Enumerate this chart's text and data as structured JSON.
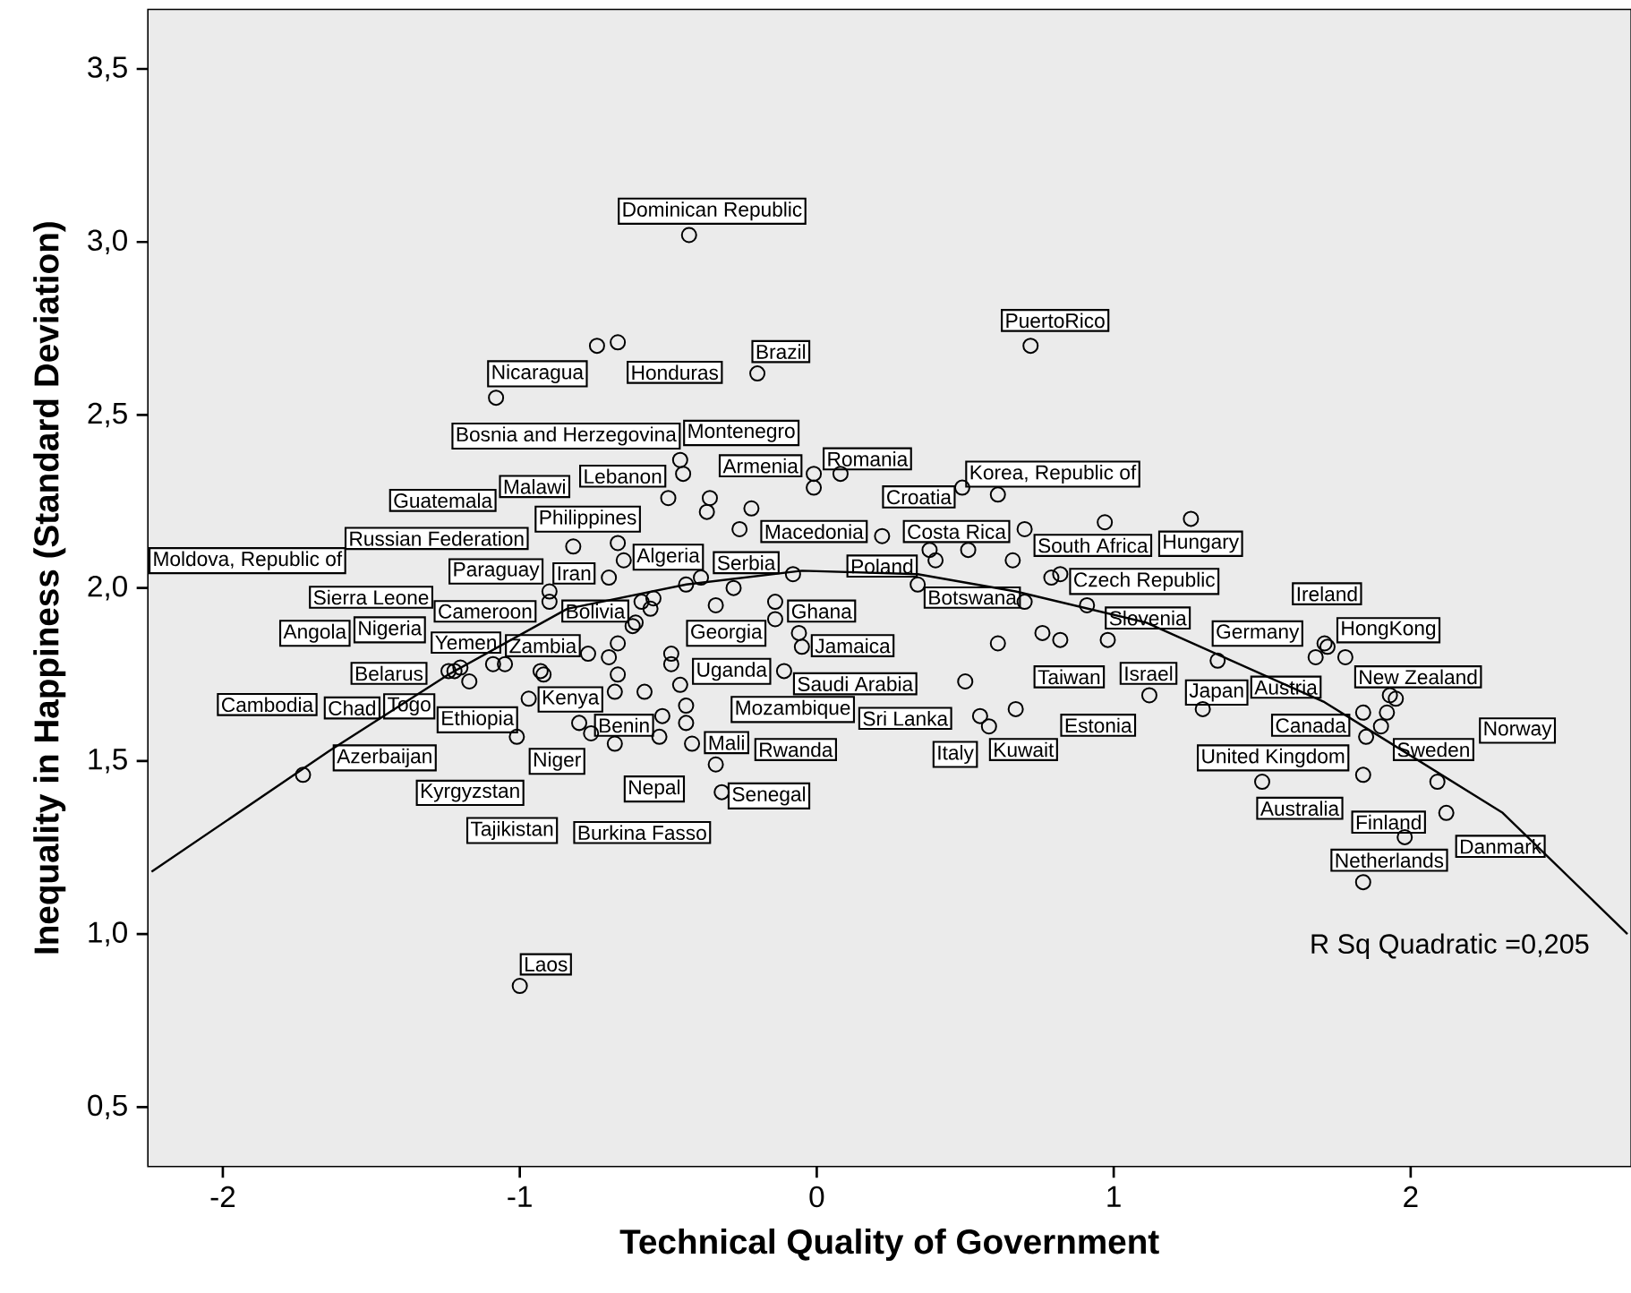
{
  "chart_data": {
    "type": "scatter",
    "xlabel": "Technical Quality of Government",
    "ylabel": "Inequality in Happiness (Standard Deviation)",
    "xlim": [
      -2.25,
      2.74
    ],
    "ylim": [
      0.33,
      3.67
    ],
    "xticks": [
      -2,
      -1,
      0,
      1,
      2
    ],
    "yticks": [
      {
        "value": 0.5,
        "label": "0,5"
      },
      {
        "value": 1.0,
        "label": "1,0"
      },
      {
        "value": 1.5,
        "label": "1,5"
      },
      {
        "value": 2.0,
        "label": "2,0"
      },
      {
        "value": 2.5,
        "label": "2,5"
      },
      {
        "value": 3.0,
        "label": "3,0"
      },
      {
        "value": 3.5,
        "label": "3,5"
      }
    ],
    "marker": "circle",
    "series": [
      {
        "color": "#000000",
        "x": [
          -0.43,
          -0.74,
          -0.67,
          -1.08,
          -0.46,
          -0.45,
          -0.5,
          -0.36,
          -0.37,
          -0.82,
          -0.67,
          -0.65,
          -0.7,
          -0.39,
          -0.44,
          -0.9,
          -0.9,
          -0.59,
          -0.55,
          -0.56,
          -0.34,
          -0.61,
          -0.67,
          -0.2,
          0.72,
          -0.01,
          0.08,
          -0.01,
          0.61,
          0.49,
          -0.22,
          -0.26,
          0.22,
          0.7,
          0.97,
          1.26,
          0.38,
          0.4,
          0.51,
          0.66,
          0.79,
          0.82,
          -0.08,
          0.34,
          0.7,
          0.91,
          -0.28,
          -0.14,
          -0.14,
          -0.06,
          0.76,
          0.82,
          0.98,
          0.61,
          1.35,
          1.12,
          1.3,
          1.71,
          1.72,
          1.68,
          1.78,
          1.93,
          1.95,
          1.84,
          1.92,
          -0.62,
          -0.77,
          -0.7,
          -0.67,
          -1.24,
          -1.22,
          -1.2,
          -1.09,
          -1.05,
          -0.93,
          -0.92,
          -1.17,
          -0.97,
          -0.68,
          -0.58,
          -0.49,
          -0.49,
          -0.46,
          -0.44,
          -0.44,
          -0.52,
          -0.8,
          -0.76,
          -0.68,
          -0.53,
          -0.42,
          -1.01,
          -1.73,
          -0.34,
          -0.32,
          -1.0,
          -0.05,
          -0.11,
          0.5,
          0.67,
          0.55,
          0.58,
          1.9,
          1.85,
          1.84,
          1.5,
          2.09,
          2.12,
          1.98,
          1.84
        ],
        "values": [
          3.02,
          2.7,
          2.71,
          2.55,
          2.37,
          2.33,
          2.26,
          2.26,
          2.22,
          2.12,
          2.13,
          2.08,
          2.03,
          2.03,
          2.01,
          1.99,
          1.96,
          1.96,
          1.97,
          1.94,
          1.95,
          1.9,
          1.84,
          2.62,
          2.7,
          2.33,
          2.33,
          2.29,
          2.27,
          2.29,
          2.23,
          2.17,
          2.15,
          2.17,
          2.19,
          2.2,
          2.11,
          2.08,
          2.11,
          2.08,
          2.03,
          2.04,
          2.04,
          2.01,
          1.96,
          1.95,
          2.0,
          1.96,
          1.91,
          1.87,
          1.87,
          1.85,
          1.85,
          1.84,
          1.79,
          1.69,
          1.65,
          1.84,
          1.83,
          1.8,
          1.8,
          1.69,
          1.68,
          1.64,
          1.64,
          1.89,
          1.81,
          1.8,
          1.75,
          1.76,
          1.76,
          1.77,
          1.78,
          1.78,
          1.76,
          1.75,
          1.73,
          1.68,
          1.7,
          1.7,
          1.81,
          1.78,
          1.72,
          1.66,
          1.61,
          1.63,
          1.61,
          1.58,
          1.55,
          1.57,
          1.55,
          1.57,
          1.46,
          1.49,
          1.41,
          0.85,
          1.83,
          1.76,
          1.73,
          1.65,
          1.63,
          1.6,
          1.6,
          1.57,
          1.46,
          1.44,
          1.44,
          1.35,
          1.28,
          1.15
        ]
      },
      {
        "type": "line",
        "color": "#000000",
        "marker": "none",
        "x": [
          -2.24,
          -1.64,
          -1.24,
          -0.84,
          -0.44,
          -0.05,
          0.34,
          0.67,
          1.11,
          1.71,
          2.31,
          2.73
        ],
        "values": [
          1.18,
          1.53,
          1.75,
          1.94,
          2.01,
          2.05,
          2.04,
          1.99,
          1.9,
          1.67,
          1.35,
          1.0
        ]
      }
    ],
    "annotations": [
      "Dominican Republic",
      "Nicaragua",
      "Honduras",
      "Bosnia and Herzegovina",
      "Montenegro",
      "Malawi",
      "Lebanon",
      "Guatemala",
      "Philippines",
      "Russian Federation",
      "Moldova, Republic of",
      "Algeria",
      "Iran",
      "Paraguay",
      "Sierra Leone",
      "Cameroon",
      "Bolivia",
      "Angola",
      "Nigeria",
      "Yemen",
      "Zambia",
      "Belarus",
      "Cambodia",
      "Chad",
      "Togo",
      "Ethiopia",
      "Kenya",
      "Benin",
      "Azerbaijan",
      "Niger",
      "Kyrgyzstan",
      "Nepal",
      "Tajikistan",
      "Burkina Fasso",
      "Laos",
      "PuertoRico",
      "Brazil",
      "Armenia",
      "Romania",
      "Croatia",
      "Korea, Republic of",
      "Macedonia",
      "Costa Rica",
      "South Africa",
      "Hungary",
      "Serbia",
      "Poland",
      "Czech Republic",
      "Botswana",
      "Slovenia",
      "Ghana",
      "Georgia",
      "Jamaica",
      "Uganda",
      "Saudi Arabia",
      "Mozambique",
      "Sri Lanka",
      "Mali",
      "Rwanda",
      "Italy",
      "Kuwait",
      "Senegal",
      "Taiwan",
      "Israel",
      "Estonia",
      "Ireland",
      "HongKong",
      "Germany",
      "Japan",
      "Austria",
      "New Zealand",
      "Canada",
      "Norway",
      "Sweden",
      "United Kingdom",
      "Australia",
      "Finland",
      "Danmark",
      "Netherlands",
      "R Sq Quadratic =0,205"
    ]
  }
}
